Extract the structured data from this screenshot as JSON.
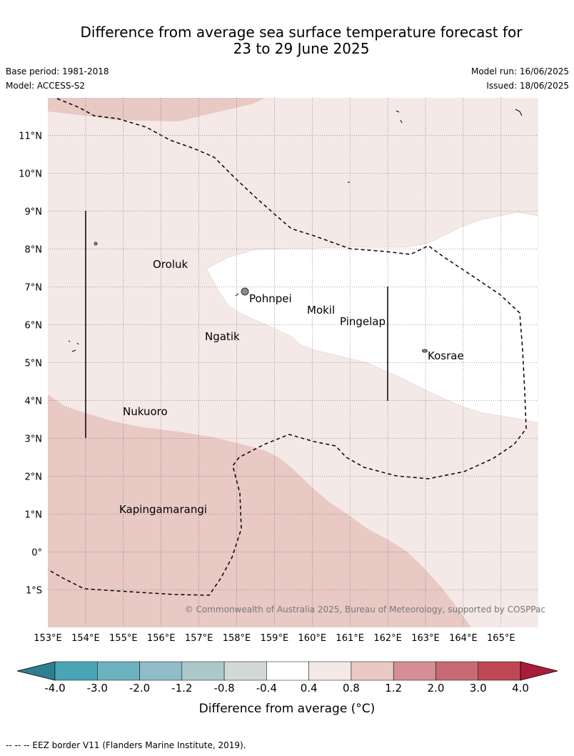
{
  "header": {
    "title_line1": "Difference from average sea surface temperature forecast for",
    "title_line2": "23 to 29 June 2025",
    "base_period": "Base period: 1981-2018",
    "model": "Model: ACCESS-S2",
    "model_run": "Model run: 16/06/2025",
    "issued": "Issued: 18/06/2025"
  },
  "map": {
    "lat_labels": [
      "11°N",
      "10°N",
      "9°N",
      "8°N",
      "7°N",
      "6°N",
      "5°N",
      "4°N",
      "3°N",
      "2°N",
      "1°N",
      "0°",
      "1°S"
    ],
    "lon_labels": [
      "153°E",
      "154°E",
      "155°E",
      "156°E",
      "157°E",
      "158°E",
      "159°E",
      "160°E",
      "161°E",
      "162°E",
      "163°E",
      "164°E",
      "165°E"
    ],
    "places": [
      {
        "name": "Oroluk"
      },
      {
        "name": "Pohnpei"
      },
      {
        "name": "Mokil"
      },
      {
        "name": "Pingelap"
      },
      {
        "name": "Ngatik"
      },
      {
        "name": "Kosrae"
      },
      {
        "name": "Nukuoro"
      },
      {
        "name": "Kapingamarangi"
      }
    ],
    "copyright": "© Commonwealth of Australia 2025, Bureau of Meteorology, supported by COSPPac",
    "colors": {
      "light_positive": "#f5e9e8",
      "mid_positive": "#e8c9c4",
      "neutral": "#ffffff"
    }
  },
  "legend": {
    "ticks": [
      "-4.0",
      "-3.0",
      "-2.0",
      "-1.2",
      "-0.8",
      "-0.4",
      "0.4",
      "0.8",
      "1.2",
      "2.0",
      "3.0",
      "4.0"
    ],
    "colors": [
      "#2e7f8f",
      "#49a5b4",
      "#6cb2bf",
      "#8fbcc6",
      "#abc8cb",
      "#d2d8d6",
      "#ffffff",
      "#f5e9e8",
      "#e8c9c4",
      "#d58e96",
      "#c86a74",
      "#be4756",
      "#a81e3a"
    ],
    "label": "Difference from average (°C)"
  },
  "footnote": "-- -- -- EEZ border V11 (Flanders Marine Institute, 2019)."
}
